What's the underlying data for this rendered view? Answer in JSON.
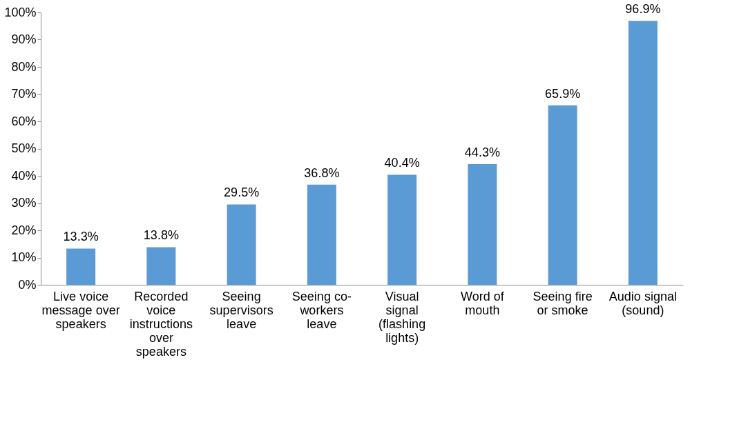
{
  "chart_data": {
    "type": "bar",
    "categories": [
      "Live voice message over speakers",
      "Recorded voice instructions over speakers",
      "Seeing supervisors leave",
      "Seeing co-workers leave",
      "Visual signal (flashing lights)",
      "Word of mouth",
      "Seeing fire or smoke",
      "Audio signal (sound)"
    ],
    "values": [
      13.3,
      13.8,
      29.5,
      36.8,
      40.4,
      44.3,
      65.9,
      96.9
    ],
    "value_labels": [
      "13.3%",
      "13.8%",
      "29.5%",
      "36.8%",
      "40.4%",
      "44.3%",
      "65.9%",
      "96.9%"
    ],
    "color": "#5b9bd5",
    "ylim": [
      0,
      100
    ],
    "yticks": [
      {
        "value": 0,
        "label": "0%"
      },
      {
        "value": 10,
        "label": "10%"
      },
      {
        "value": 20,
        "label": "20%"
      },
      {
        "value": 30,
        "label": "30%"
      },
      {
        "value": 40,
        "label": "40%"
      },
      {
        "value": 50,
        "label": "50%"
      },
      {
        "value": 60,
        "label": "60%"
      },
      {
        "value": 70,
        "label": "70%"
      },
      {
        "value": 80,
        "label": "80%"
      },
      {
        "value": 90,
        "label": "90%"
      },
      {
        "value": 100,
        "label": "100%"
      }
    ],
    "grid": false
  }
}
